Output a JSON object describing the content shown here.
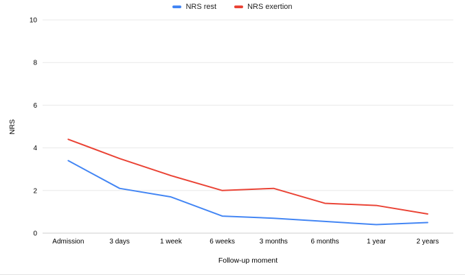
{
  "chart_data": {
    "type": "line",
    "title": "",
    "xlabel": "Follow-up moment",
    "ylabel": "NRS",
    "ylim": [
      0,
      10
    ],
    "yticks": [
      0,
      2,
      4,
      6,
      8,
      10
    ],
    "categories": [
      "Admission",
      "3 days",
      "1 week",
      "6 weeks",
      "3 months",
      "6 months",
      "1 year",
      "2 years"
    ],
    "series": [
      {
        "name": "NRS rest",
        "color": "#4285f4",
        "values": [
          3.4,
          2.1,
          1.7,
          0.8,
          0.7,
          0.55,
          0.4,
          0.5
        ]
      },
      {
        "name": "NRS exertion",
        "color": "#ea4335",
        "values": [
          4.4,
          3.5,
          2.7,
          2.0,
          2.1,
          1.4,
          1.3,
          0.9
        ]
      }
    ],
    "legend_position": "top",
    "grid": true,
    "colors": {
      "gridline": "#e8e8e8",
      "baseline": "#cccccc",
      "tick_text": "#000000"
    }
  }
}
